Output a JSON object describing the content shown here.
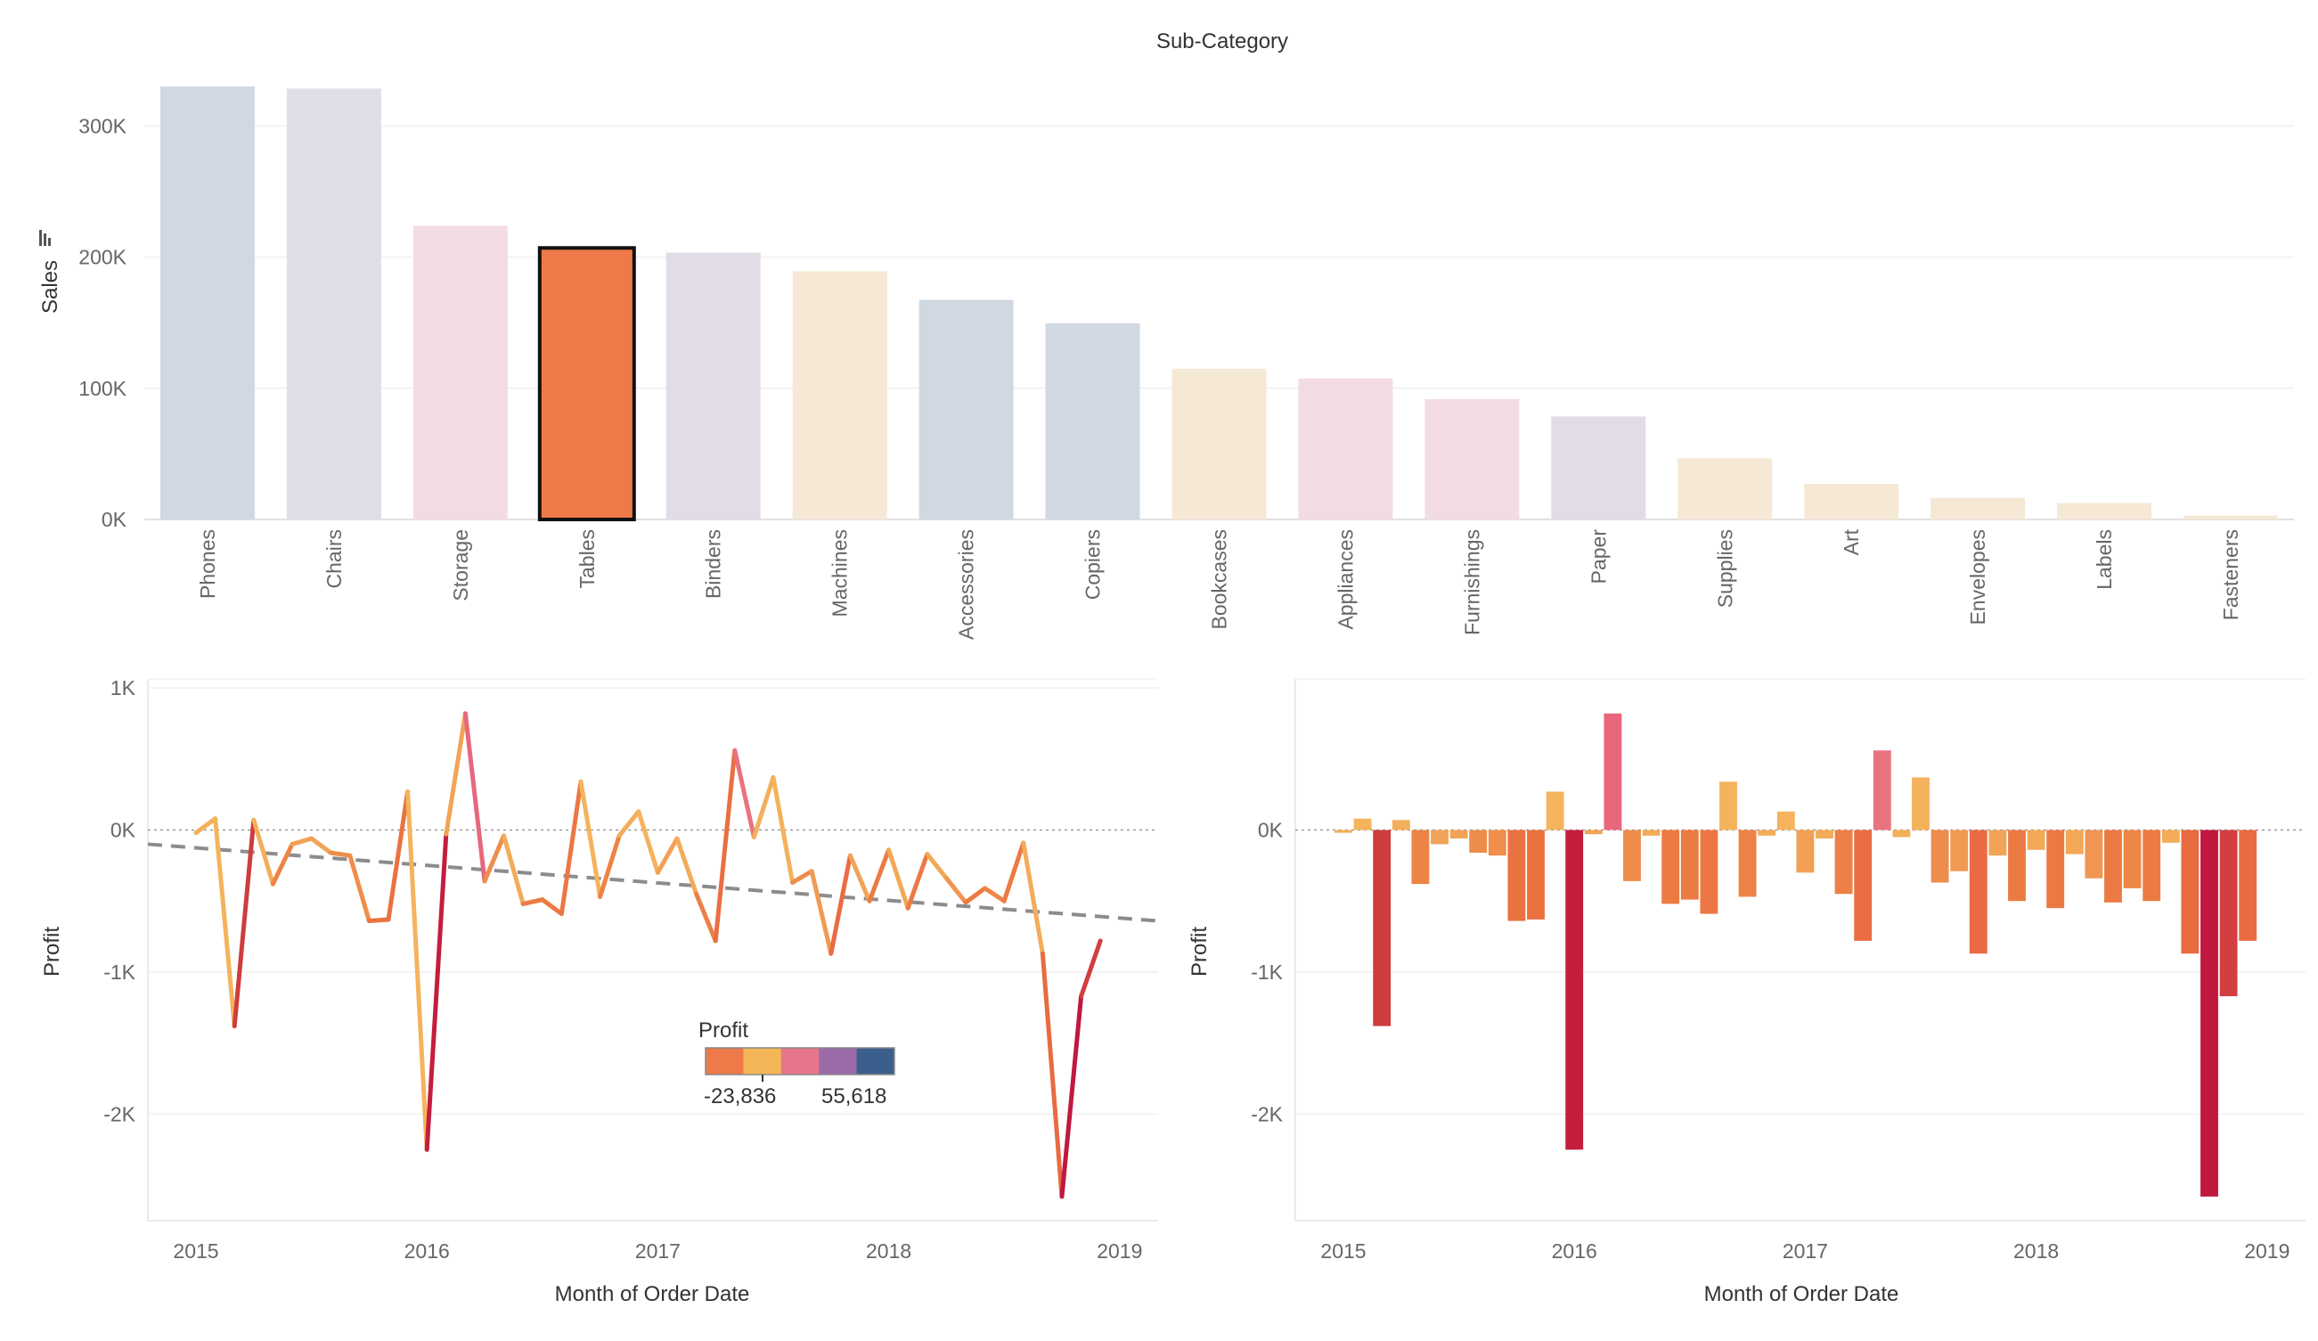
{
  "chart_data": [
    {
      "type": "bar",
      "title": "Sub-Category",
      "xlabel": "",
      "ylabel": "Sales",
      "y_ticks": [
        "300K",
        "200K",
        "100K",
        "0K"
      ],
      "y_tick_values": [
        300000,
        200000,
        100000,
        0
      ],
      "ylim": [
        0,
        345000
      ],
      "grid": true,
      "highlighted_category": "Tables",
      "categories": [
        "Phones",
        "Chairs",
        "Storage",
        "Tables",
        "Binders",
        "Machines",
        "Accessories",
        "Copiers",
        "Bookcases",
        "Appliances",
        "Furnishings",
        "Paper",
        "Supplies",
        "Art",
        "Envelopes",
        "Labels",
        "Fasteners"
      ],
      "values": [
        330007,
        328449,
        223844,
        206966,
        203413,
        189239,
        167380,
        149528,
        114880,
        107532,
        91705,
        78479,
        46674,
        27119,
        16476,
        12486,
        3024
      ],
      "colors": [
        "#d0d9e1",
        "#e1dde6",
        "#f2dce2",
        "#ed7a48",
        "#e1dce6",
        "#f5e9d6",
        "#d0d9e1",
        "#d0d9e1",
        "#f5e9d6",
        "#f2dce2",
        "#f2dce2",
        "#e1dce6",
        "#f5e9d6",
        "#f5e9d6",
        "#f5e9d6",
        "#f5e9d6",
        "#f5e9d6"
      ]
    },
    {
      "type": "line",
      "xlabel": "Month of Order Date",
      "ylabel": "Profit",
      "x_ticks": [
        "2015",
        "2016",
        "2017",
        "2018",
        "2019"
      ],
      "x_tick_values": [
        0,
        12,
        24,
        36,
        48
      ],
      "y_ticks": [
        "1K",
        "0K",
        "-1K",
        "-2K"
      ],
      "y_tick_values": [
        1000,
        0,
        -1000,
        -2000
      ],
      "ylim": [
        -2750,
        950
      ],
      "xlim": [
        -2.5,
        50
      ],
      "trend_line": {
        "style": "dashed",
        "color": "#8c8c8c",
        "start": [
          -2.5,
          -100
        ],
        "end": [
          50,
          -640
        ]
      },
      "zero_line": {
        "style": "dotted"
      },
      "x": [
        0,
        1,
        2,
        3,
        4,
        5,
        6,
        7,
        8,
        9,
        10,
        11,
        12,
        13,
        14,
        15,
        16,
        17,
        18,
        19,
        20,
        21,
        22,
        23,
        24,
        25,
        26,
        27,
        28,
        29,
        30,
        31,
        32,
        33,
        34,
        35,
        36,
        37,
        38,
        39,
        40,
        41,
        42,
        43,
        44,
        45,
        46,
        47
      ],
      "values": [
        -20,
        80,
        -1380,
        70,
        -380,
        -100,
        -60,
        -160,
        -180,
        -640,
        -630,
        270,
        -2250,
        -30,
        820,
        -360,
        -40,
        -520,
        -490,
        -590,
        340,
        -470,
        -40,
        130,
        -300,
        -60,
        -450,
        -780,
        560,
        -50,
        370,
        -370,
        -290,
        -870,
        -180,
        -500,
        -140,
        -550,
        -170,
        -340,
        -510,
        -410,
        -500,
        -90,
        -870,
        -2580,
        -1170,
        -780
      ],
      "colors": [
        "#f2b05a",
        "#f3b45c",
        "#cf3c3d",
        "#f2b05a",
        "#ed8445",
        "#f1a457",
        "#f1a457",
        "#ed8d4b",
        "#f08e4a",
        "#ea7240",
        "#ea7240",
        "#f5b35d",
        "#c41d3e",
        "#f2a455",
        "#e8677d",
        "#ee8d4c",
        "#f2ac5a",
        "#ec7b43",
        "#ec7b43",
        "#ec7744",
        "#f5b35d",
        "#ed8346",
        "#f2ac5a",
        "#f5b35d",
        "#f1a055",
        "#f2ac5a",
        "#ec8046",
        "#ea6e42",
        "#e8737f",
        "#f3b05b",
        "#f4b25c",
        "#ed8d4b",
        "#f09a53",
        "#ea6b43",
        "#f1a457",
        "#ec7b43",
        "#f3a856",
        "#ec7944",
        "#f3a856",
        "#f09552",
        "#ec7b43",
        "#ee8646",
        "#ec7b43",
        "#f2ac5a",
        "#e86b41",
        "#c0183f",
        "#d33e40",
        "#e86b41"
      ],
      "legend": {
        "title": "Profit",
        "min_label": "-23,836",
        "max_label": "55,618",
        "swatches": [
          "#ed7a48",
          "#f4b657",
          "#e8768b",
          "#9b6aa9",
          "#3b5f8c"
        ]
      }
    },
    {
      "type": "bar",
      "xlabel": "Month of Order Date",
      "ylabel": "Profit",
      "x_ticks": [
        "2015",
        "2016",
        "2017",
        "2018",
        "2019"
      ],
      "x_tick_values": [
        0,
        12,
        24,
        36,
        48
      ],
      "y_ticks": [
        "0K",
        "-1K",
        "-2K"
      ],
      "y_tick_values": [
        0,
        -1000,
        -2000
      ],
      "ylim": [
        -2750,
        950
      ],
      "xlim": [
        -2.5,
        50
      ],
      "zero_line": {
        "style": "dotted"
      },
      "x": [
        0,
        1,
        2,
        3,
        4,
        5,
        6,
        7,
        8,
        9,
        10,
        11,
        12,
        13,
        14,
        15,
        16,
        17,
        18,
        19,
        20,
        21,
        22,
        23,
        24,
        25,
        26,
        27,
        28,
        29,
        30,
        31,
        32,
        33,
        34,
        35,
        36,
        37,
        38,
        39,
        40,
        41,
        42,
        43,
        44,
        45,
        46,
        47
      ],
      "values": [
        -20,
        80,
        -1380,
        70,
        -380,
        -100,
        -60,
        -160,
        -180,
        -640,
        -630,
        270,
        -2250,
        -30,
        820,
        -360,
        -40,
        -520,
        -490,
        -590,
        340,
        -470,
        -40,
        130,
        -300,
        -60,
        -450,
        -780,
        560,
        -50,
        370,
        -370,
        -290,
        -870,
        -180,
        -500,
        -140,
        -550,
        -170,
        -340,
        -510,
        -410,
        -500,
        -90,
        -870,
        -2580,
        -1170,
        -780
      ],
      "colors": [
        "#f2b05a",
        "#f3b45c",
        "#cf3c3d",
        "#f2b05a",
        "#ed8445",
        "#f1a457",
        "#f1a457",
        "#ed8d4b",
        "#f08e4a",
        "#ea7240",
        "#ea7240",
        "#f5b35d",
        "#c41d3e",
        "#f2a455",
        "#e8677d",
        "#ee8d4c",
        "#f2ac5a",
        "#ec7b43",
        "#ec7b43",
        "#ec7744",
        "#f5b35d",
        "#ed8346",
        "#f2ac5a",
        "#f5b35d",
        "#f1a055",
        "#f2ac5a",
        "#ec8046",
        "#ea6e42",
        "#e8737f",
        "#f3b05b",
        "#f4b25c",
        "#ed8d4b",
        "#f09a53",
        "#ea6b43",
        "#f1a457",
        "#ec7b43",
        "#f3a856",
        "#ec7944",
        "#f3a856",
        "#f09552",
        "#ec7b43",
        "#ee8646",
        "#ec7b43",
        "#f2ac5a",
        "#e86b41",
        "#c0183f",
        "#d33e40",
        "#e86b41"
      ]
    }
  ]
}
